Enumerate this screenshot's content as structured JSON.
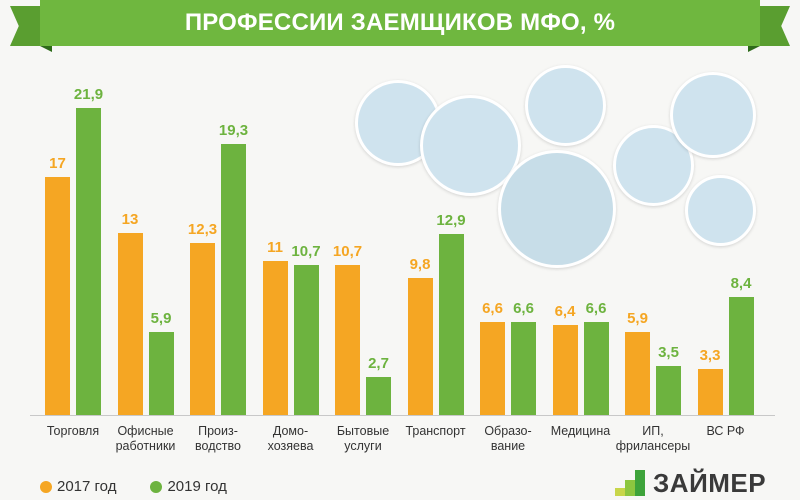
{
  "header": {
    "title": "ПРОФЕССИИ ЗАЕМЩИКОВ МФО, %"
  },
  "legend": [
    {
      "label": "2017 год",
      "color": "#f5a623"
    },
    {
      "label": "2019 год",
      "color": "#6db33f"
    }
  ],
  "logo": {
    "text": "ЗАЙМЕР"
  },
  "categories_display": [
    [
      "Торговля",
      ""
    ],
    [
      "Офисные",
      "работники"
    ],
    [
      "Произ-",
      "водство"
    ],
    [
      "Домо-",
      "хозяева"
    ],
    [
      "Бытовые",
      "услуги"
    ],
    [
      "Транспорт",
      ""
    ],
    [
      "Образо-",
      "вание"
    ],
    [
      "Медицина",
      ""
    ],
    [
      "ИП,",
      "фрилансеры"
    ],
    [
      "ВС РФ",
      ""
    ]
  ],
  "labels_2017": [
    "17",
    "13",
    "12,3",
    "11",
    "10,7",
    "9,8",
    "6,6",
    "6,4",
    "5,9",
    "3,3"
  ],
  "labels_2019": [
    "21,9",
    "5,9",
    "19,3",
    "10,7",
    "2,7",
    "12,9",
    "6,6",
    "6,6",
    "3,5",
    "8,4"
  ],
  "chart_data": {
    "type": "bar",
    "title": "ПРОФЕССИИ ЗАЕМЩИКОВ МФО, %",
    "xlabel": "",
    "ylabel": "%",
    "categories": [
      "Торговля",
      "Офисные работники",
      "Производство",
      "Домохозяева",
      "Бытовые услуги",
      "Транспорт",
      "Образование",
      "Медицина",
      "ИП, фрилансеры",
      "ВС РФ"
    ],
    "series": [
      {
        "name": "2017 год",
        "color": "#f5a623",
        "values": [
          17,
          13,
          12.3,
          11,
          10.7,
          9.8,
          6.6,
          6.4,
          5.9,
          3.3
        ]
      },
      {
        "name": "2019 год",
        "color": "#6db33f",
        "values": [
          21.9,
          5.9,
          19.3,
          10.7,
          2.7,
          12.9,
          6.6,
          6.6,
          3.5,
          8.4
        ]
      }
    ],
    "ylim": [
      0,
      22
    ],
    "grid": false,
    "legend_position": "bottom-left"
  }
}
